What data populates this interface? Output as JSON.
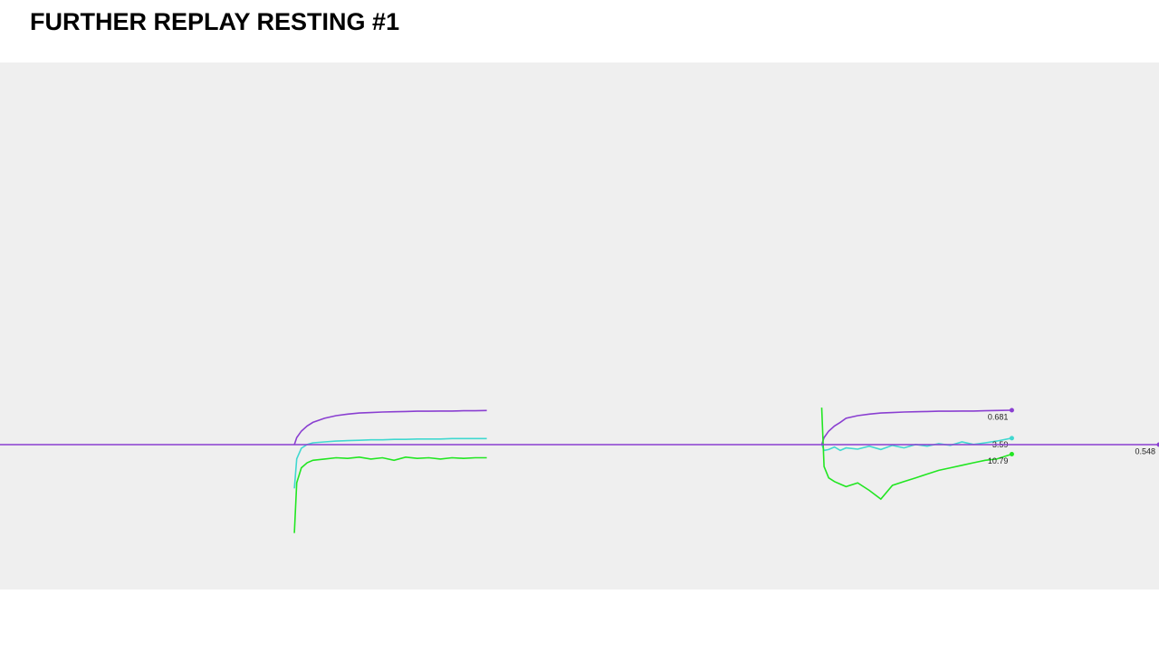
{
  "chart_data": {
    "type": "line",
    "title": "FURTHER REPLAY RESTING #1",
    "xlim": [
      0,
      100
    ],
    "series": [
      {
        "color": "#8a3fd1",
        "ylim": [
          -0.012,
          2.025
        ],
        "x": [
          25.4,
          25.6,
          26,
          26.5,
          27,
          28,
          29,
          30,
          31,
          32,
          33,
          34,
          35,
          36,
          37,
          38,
          39,
          40,
          41,
          42
        ],
        "values": [
          0.548,
          0.575,
          0.6,
          0.62,
          0.634,
          0.65,
          0.66,
          0.666,
          0.67,
          0.672,
          0.674,
          0.675,
          0.676,
          0.677,
          0.677,
          0.678,
          0.678,
          0.679,
          0.679,
          0.68
        ]
      },
      {
        "color": "#40d8d0",
        "ylim": [
          0,
          12.5
        ],
        "x": [
          25.4,
          25.6,
          26,
          26.5,
          27,
          28,
          29,
          30,
          31,
          32,
          33,
          34,
          35,
          36,
          37,
          38,
          39,
          40,
          41,
          42
        ],
        "values": [
          2.4,
          3.1,
          3.35,
          3.44,
          3.48,
          3.5,
          3.52,
          3.53,
          3.54,
          3.55,
          3.55,
          3.56,
          3.56,
          3.57,
          3.57,
          3.57,
          3.58,
          3.58,
          3.58,
          3.58
        ]
      },
      {
        "color": "#22e622",
        "ylim": [
          0,
          42
        ],
        "x": [
          25.4,
          25.6,
          26,
          26.5,
          27,
          28,
          29,
          30,
          31,
          32,
          33,
          34,
          35,
          36,
          37,
          38,
          39,
          40,
          41,
          42
        ],
        "values": [
          4.5,
          8.5,
          9.7,
          10.1,
          10.3,
          10.4,
          10.5,
          10.45,
          10.55,
          10.4,
          10.5,
          10.3,
          10.55,
          10.45,
          10.5,
          10.4,
          10.5,
          10.45,
          10.5,
          10.5
        ]
      },
      {
        "color": "#8a3fd1",
        "ylim": [
          -0.012,
          2.025
        ],
        "end_label": true,
        "x": [
          70.9,
          71.1,
          71.5,
          72,
          72.5,
          73,
          74,
          75,
          76,
          77,
          78,
          79,
          80,
          81,
          82,
          83,
          84,
          85,
          86,
          87.3
        ],
        "values": [
          0.548,
          0.575,
          0.6,
          0.62,
          0.634,
          0.65,
          0.66,
          0.666,
          0.67,
          0.672,
          0.674,
          0.675,
          0.676,
          0.677,
          0.677,
          0.678,
          0.678,
          0.679,
          0.68,
          0.681
        ]
      },
      {
        "color": "#40d8d0",
        "ylim": [
          0,
          12.5
        ],
        "end_label": true,
        "x": [
          70.9,
          71.1,
          71.5,
          72,
          72.5,
          73,
          74,
          75,
          76,
          77,
          78,
          79,
          80,
          81,
          82,
          83,
          84,
          85,
          86,
          87.3
        ],
        "values": [
          3.45,
          3.3,
          3.32,
          3.38,
          3.3,
          3.36,
          3.33,
          3.4,
          3.32,
          3.42,
          3.36,
          3.44,
          3.4,
          3.46,
          3.42,
          3.5,
          3.44,
          3.48,
          3.52,
          3.59
        ]
      },
      {
        "color": "#22e622",
        "ylim": [
          0,
          42
        ],
        "end_label": true,
        "x": [
          70.9,
          71.1,
          71.5,
          72,
          72.5,
          73,
          74,
          75,
          76,
          77,
          78,
          79,
          80,
          81,
          82,
          83,
          84,
          85,
          86,
          87.3
        ],
        "values": [
          14.5,
          9.8,
          8.9,
          8.6,
          8.4,
          8.2,
          8.5,
          7.9,
          7.2,
          8.3,
          8.6,
          8.9,
          9.2,
          9.5,
          9.7,
          9.9,
          10.1,
          10.3,
          10.4,
          10.79
        ]
      },
      {
        "color": "#8a3fd1",
        "ylim": [
          -0.012,
          2.025
        ],
        "end_label": true,
        "x": [
          0,
          100
        ],
        "values": [
          0.548,
          0.548
        ]
      }
    ]
  }
}
